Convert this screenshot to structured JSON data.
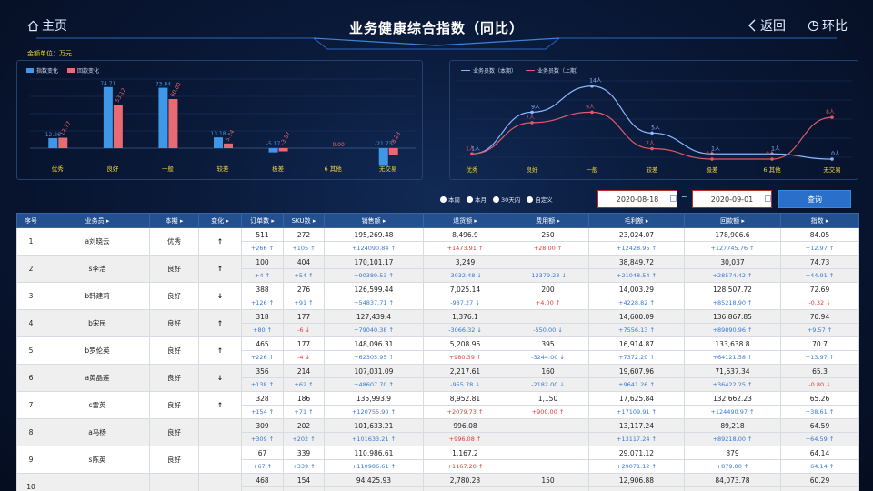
{
  "header": {
    "home": "主页",
    "title": "业务健康综合指数（同比）",
    "back": "返回",
    "ring": "环比",
    "unit": "金额单位：万元"
  },
  "bar_chart": {
    "type": "bar",
    "legend": [
      "指数变化",
      "回款变化"
    ],
    "colors": [
      "#3f97e8",
      "#e86a72"
    ],
    "categories": [
      "优秀",
      "良好",
      "一般",
      "较差",
      "极差",
      "6 其他",
      "无交易"
    ],
    "series": [
      {
        "name": "指数变化",
        "values": [
          12.26,
          74.71,
          73.84,
          13.18,
          -5.17,
          0,
          -21.73
        ]
      },
      {
        "name": "回款变化",
        "values": [
          12.77,
          53.12,
          60.0,
          5.74,
          -3.87,
          0,
          -8.23
        ]
      }
    ],
    "labels1": [
      "12.26",
      "74.71",
      "73.84",
      "13.18",
      "-5.17",
      "",
      "-21.73"
    ],
    "labels2": [
      "12.77",
      "53.12",
      "60.00",
      "5.74",
      "-3.87",
      "0.00",
      "-8.23"
    ]
  },
  "line_chart": {
    "type": "line",
    "legend": [
      "业务员数（本期）",
      "业务员数（上期）"
    ],
    "colors": [
      "#8fb6ff",
      "#e25a6a"
    ],
    "categories": [
      "优秀",
      "良好",
      "一般",
      "较差",
      "极差",
      "6 其他",
      "无交易"
    ],
    "series": [
      {
        "name": "业务员数（本期）",
        "values": [
          1,
          9,
          14,
          5,
          1,
          1,
          0
        ]
      },
      {
        "name": "业务员数（上期）",
        "values": [
          1,
          7,
          9,
          2,
          0,
          0,
          8
        ]
      }
    ],
    "labels1": [
      "1人",
      "9人",
      "14人",
      "5人",
      "1人",
      "1人",
      "0人"
    ],
    "labels2": [
      "1人",
      "7人",
      "9人",
      "2人",
      "0人",
      "0人",
      "8人"
    ]
  },
  "controls": {
    "radios": [
      "本周",
      "本月",
      "30天内",
      "自定义"
    ],
    "date_from": "2020-08-18",
    "date_sep": "~",
    "date_to": "2020-09-01",
    "query": "查询"
  },
  "table": {
    "headers": [
      "序号",
      "业务员 ▸",
      "本期 ▸",
      "变化 ▸",
      "订单数 ▸",
      "SKU数 ▸",
      "销售额 ▸",
      "退货额 ▸",
      "费用额 ▸",
      "毛利额 ▸",
      "回款额 ▸",
      "指数 ▸"
    ],
    "rows": [
      {
        "no": "1",
        "name": "a刘晓云",
        "lvl": "优秀",
        "chg": "↑",
        "v": [
          "511",
          "272",
          "195,269.48",
          "8,496.9",
          "250",
          "23,024.07",
          "178,906.6",
          "84.05"
        ],
        "d": [
          [
            "+266 ↑",
            "b"
          ],
          [
            "+105 ↑",
            "b"
          ],
          [
            "+124090.84 ↑",
            "b"
          ],
          [
            "+1473.91 ↑",
            "r"
          ],
          [
            "+28.00 ↑",
            "r"
          ],
          [
            "+12428.95 ↑",
            "b"
          ],
          [
            "+127745.76 ↑",
            "b"
          ],
          [
            "+12.97 ↑",
            "b"
          ]
        ]
      },
      {
        "no": "2",
        "name": "s李浩",
        "lvl": "良好",
        "chg": "↑",
        "v": [
          "100",
          "404",
          "170,101.17",
          "3,249",
          "",
          "38,849.72",
          "30,037",
          "74.73"
        ],
        "d": [
          [
            "+4 ↑",
            "b"
          ],
          [
            "+54 ↑",
            "b"
          ],
          [
            "+90389.53 ↑",
            "b"
          ],
          [
            "-3032.48 ↓",
            "b"
          ],
          [
            "-12379.23 ↓",
            "b"
          ],
          [
            "+21048.54 ↑",
            "b"
          ],
          [
            "+28574.42 ↑",
            "b"
          ],
          [
            "+44.91 ↑",
            "b"
          ]
        ]
      },
      {
        "no": "3",
        "name": "b韩建莉",
        "lvl": "良好",
        "chg": "↓",
        "v": [
          "388",
          "276",
          "126,599.44",
          "7,025.14",
          "200",
          "14,003.29",
          "128,507.72",
          "72.69"
        ],
        "d": [
          [
            "+126 ↑",
            "b"
          ],
          [
            "+91 ↑",
            "b"
          ],
          [
            "+54837.71 ↑",
            "b"
          ],
          [
            "-987.27 ↓",
            "b"
          ],
          [
            "+4.00 ↑",
            "r"
          ],
          [
            "+4228.82 ↑",
            "b"
          ],
          [
            "+85218.90 ↑",
            "b"
          ],
          [
            "-0.32 ↓",
            "r"
          ]
        ]
      },
      {
        "no": "4",
        "name": "b宋民",
        "lvl": "良好",
        "chg": "↑",
        "v": [
          "318",
          "177",
          "127,439.4",
          "1,376.1",
          "",
          "14,600.09",
          "136,867.85",
          "70.94"
        ],
        "d": [
          [
            "+80 ↑",
            "b"
          ],
          [
            "-6 ↓",
            "r"
          ],
          [
            "+79040.38 ↑",
            "b"
          ],
          [
            "-3066.32 ↓",
            "b"
          ],
          [
            "-550.00 ↓",
            "b"
          ],
          [
            "+7556.13 ↑",
            "b"
          ],
          [
            "+89890.96 ↑",
            "b"
          ],
          [
            "+9.57 ↑",
            "b"
          ]
        ]
      },
      {
        "no": "5",
        "name": "b罗伦英",
        "lvl": "良好",
        "chg": "↑",
        "v": [
          "465",
          "177",
          "148,096.31",
          "5,208.96",
          "395",
          "16,914.87",
          "133,638.8",
          "70.7"
        ],
        "d": [
          [
            "+226 ↑",
            "b"
          ],
          [
            "-4 ↓",
            "r"
          ],
          [
            "+62305.95 ↑",
            "b"
          ],
          [
            "+980.39 ↑",
            "r"
          ],
          [
            "-3244.00 ↓",
            "b"
          ],
          [
            "+7372.20 ↑",
            "b"
          ],
          [
            "+64121.58 ↑",
            "b"
          ],
          [
            "+13.97 ↑",
            "b"
          ]
        ]
      },
      {
        "no": "6",
        "name": "a黄晶莲",
        "lvl": "良好",
        "chg": "↓",
        "v": [
          "356",
          "214",
          "107,031.09",
          "2,217.61",
          "160",
          "19,607.96",
          "71,637.34",
          "65.3"
        ],
        "d": [
          [
            "+138 ↑",
            "b"
          ],
          [
            "+62 ↑",
            "b"
          ],
          [
            "+48607.70 ↑",
            "b"
          ],
          [
            "-955.78 ↓",
            "b"
          ],
          [
            "-2182.00 ↓",
            "b"
          ],
          [
            "+9641.26 ↑",
            "b"
          ],
          [
            "+36422.25 ↑",
            "b"
          ],
          [
            "-0.80 ↓",
            "r"
          ]
        ]
      },
      {
        "no": "7",
        "name": "c雷英",
        "lvl": "良好",
        "chg": "↑",
        "v": [
          "328",
          "186",
          "135,993.9",
          "8,952.81",
          "1,150",
          "17,625.84",
          "132,662.23",
          "65.26"
        ],
        "d": [
          [
            "+154 ↑",
            "b"
          ],
          [
            "+71 ↑",
            "b"
          ],
          [
            "+120755.90 ↑",
            "b"
          ],
          [
            "+2079.73 ↑",
            "r"
          ],
          [
            "+900.00 ↑",
            "r"
          ],
          [
            "+17109.91 ↑",
            "b"
          ],
          [
            "+124490.97 ↑",
            "b"
          ],
          [
            "+38.61 ↑",
            "b"
          ]
        ]
      },
      {
        "no": "8",
        "name": "a马杨",
        "lvl": "良好",
        "chg": "",
        "v": [
          "309",
          "202",
          "101,633.21",
          "996.08",
          "",
          "13,117.24",
          "89,218",
          "64.59"
        ],
        "d": [
          [
            "+309 ↑",
            "b"
          ],
          [
            "+202 ↑",
            "b"
          ],
          [
            "+101633.21 ↑",
            "b"
          ],
          [
            "+996.08 ↑",
            "r"
          ],
          [
            "",
            ""
          ],
          [
            "+13117.24 ↑",
            "b"
          ],
          [
            "+89218.00 ↑",
            "b"
          ],
          [
            "+64.59 ↑",
            "b"
          ]
        ]
      },
      {
        "no": "9",
        "name": "s陈英",
        "lvl": "良好",
        "chg": "",
        "v": [
          "67",
          "339",
          "110,986.61",
          "1,167.2",
          "",
          "29,071.12",
          "879",
          "64.14"
        ],
        "d": [
          [
            "+67 ↑",
            "b"
          ],
          [
            "+339 ↑",
            "b"
          ],
          [
            "+110986.61 ↑",
            "b"
          ],
          [
            "+1167.20 ↑",
            "r"
          ],
          [
            "",
            ""
          ],
          [
            "+29071.12 ↑",
            "b"
          ],
          [
            "+879.00 ↑",
            "b"
          ],
          [
            "+64.14 ↑",
            "b"
          ]
        ]
      },
      {
        "no": "10",
        "name": "",
        "lvl": "",
        "chg": "",
        "v": [
          "468",
          "154",
          "94,425.93",
          "2,780.28",
          "150",
          "12,906.88",
          "84,073.78",
          "60.29"
        ],
        "d": [
          [
            "",
            ""
          ],
          [
            "",
            ""
          ],
          [
            "",
            ""
          ],
          [
            "",
            ""
          ],
          [
            "",
            ""
          ],
          [
            "",
            ""
          ],
          [
            "",
            ""
          ],
          [
            "",
            ""
          ]
        ]
      }
    ]
  }
}
